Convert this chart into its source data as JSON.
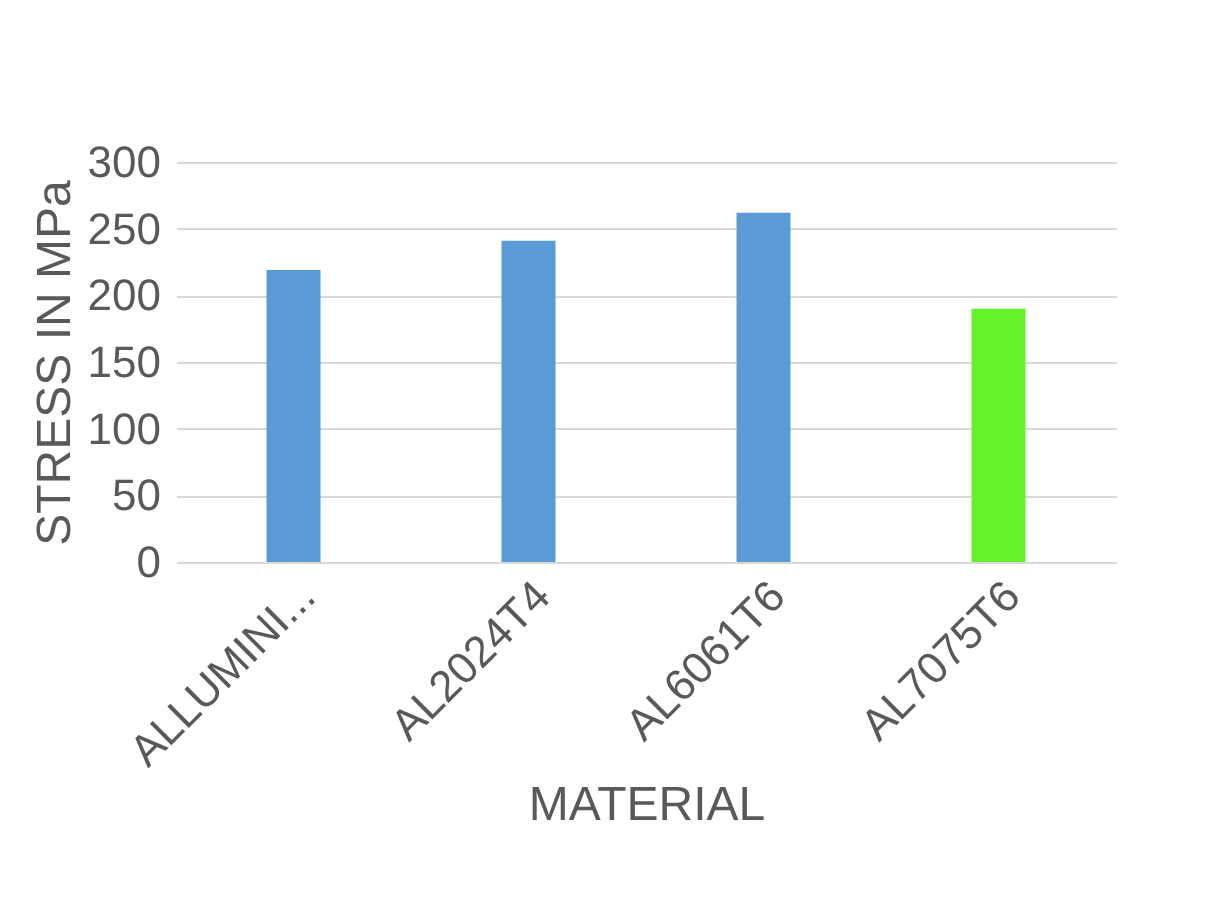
{
  "chart_data": {
    "type": "bar",
    "xlabel": "MATERIAL",
    "ylabel": "STRESS IN MPa",
    "categories": [
      "ALLUMINI...",
      "AL2024T4",
      "AL6061T6",
      "AL7075T6"
    ],
    "values": [
      219,
      241,
      262,
      190
    ],
    "colors": [
      "#5b9bd5",
      "#5b9bd5",
      "#5b9bd5",
      "#66f02a"
    ],
    "ylim": [
      0,
      300
    ],
    "yticks": [
      0,
      50,
      100,
      150,
      200,
      250,
      300
    ],
    "grid": "y"
  }
}
